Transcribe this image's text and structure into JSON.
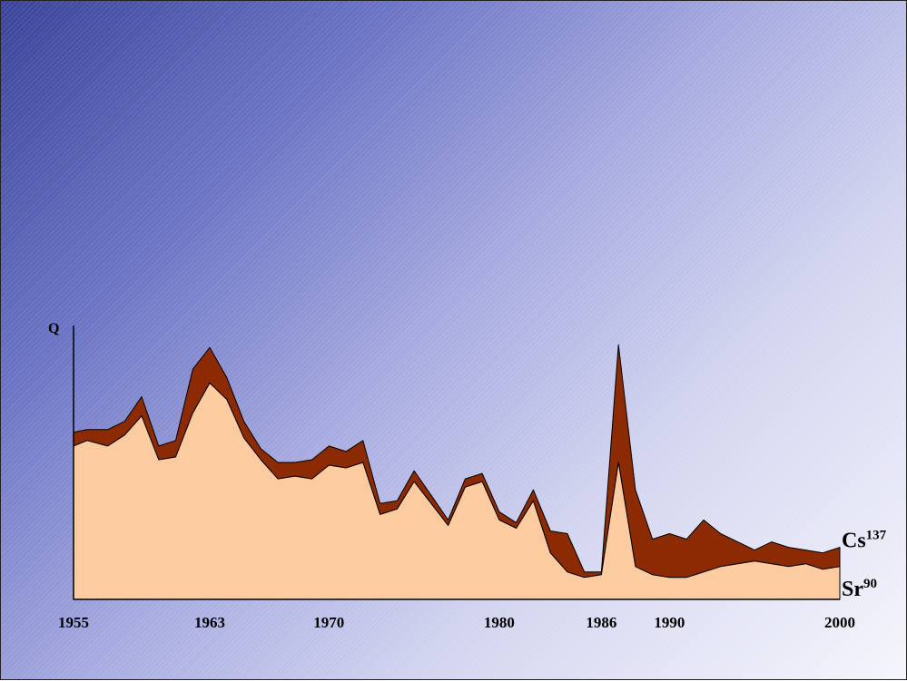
{
  "chart_data": {
    "type": "area",
    "stacked": true,
    "ylabel": "Q",
    "xlim": [
      1955,
      2000
    ],
    "x_ticks": [
      "1955",
      "1963",
      "1970",
      "1980",
      "1986",
      "1990",
      "2000"
    ],
    "x": [
      1955,
      1955.8,
      1957,
      1958,
      1959,
      1960,
      1961,
      1962,
      1963,
      1964,
      1965,
      1966,
      1967,
      1968,
      1969,
      1970,
      1971,
      1972,
      1973,
      1974,
      1975,
      1976,
      1977,
      1978,
      1979,
      1980,
      1981,
      1982,
      1983,
      1984,
      1985,
      1986,
      1987,
      1988,
      1989,
      1990,
      1991,
      1992,
      1993,
      1994,
      1995,
      1996,
      1997,
      1998,
      1999,
      2000
    ],
    "series": [
      {
        "name": "Sr",
        "superscript": "90",
        "color": "#fccb9f",
        "values": [
          56,
          58,
          56,
          60,
          67,
          51,
          52,
          68,
          79,
          73,
          59,
          51,
          44,
          45,
          44,
          49,
          48,
          50,
          31,
          33,
          43,
          35,
          27,
          41,
          43,
          29,
          26,
          36,
          17,
          10,
          8,
          9,
          50,
          12,
          9,
          8,
          8,
          10,
          12,
          13,
          14,
          13,
          12,
          13,
          11,
          12
        ]
      },
      {
        "name": "Cs",
        "superscript": "137",
        "color": "#8b2a03",
        "values": [
          5,
          4,
          6,
          5,
          7,
          5,
          6,
          16,
          13,
          8,
          6,
          4,
          6,
          5,
          7,
          7,
          6,
          8,
          4,
          3,
          4,
          3,
          2,
          3,
          3,
          3,
          2,
          4,
          8,
          14,
          2,
          1,
          43,
          28,
          13,
          16,
          14,
          19,
          12,
          8,
          4,
          8,
          7,
          5,
          6,
          7
        ]
      }
    ],
    "label_positions": "right"
  }
}
